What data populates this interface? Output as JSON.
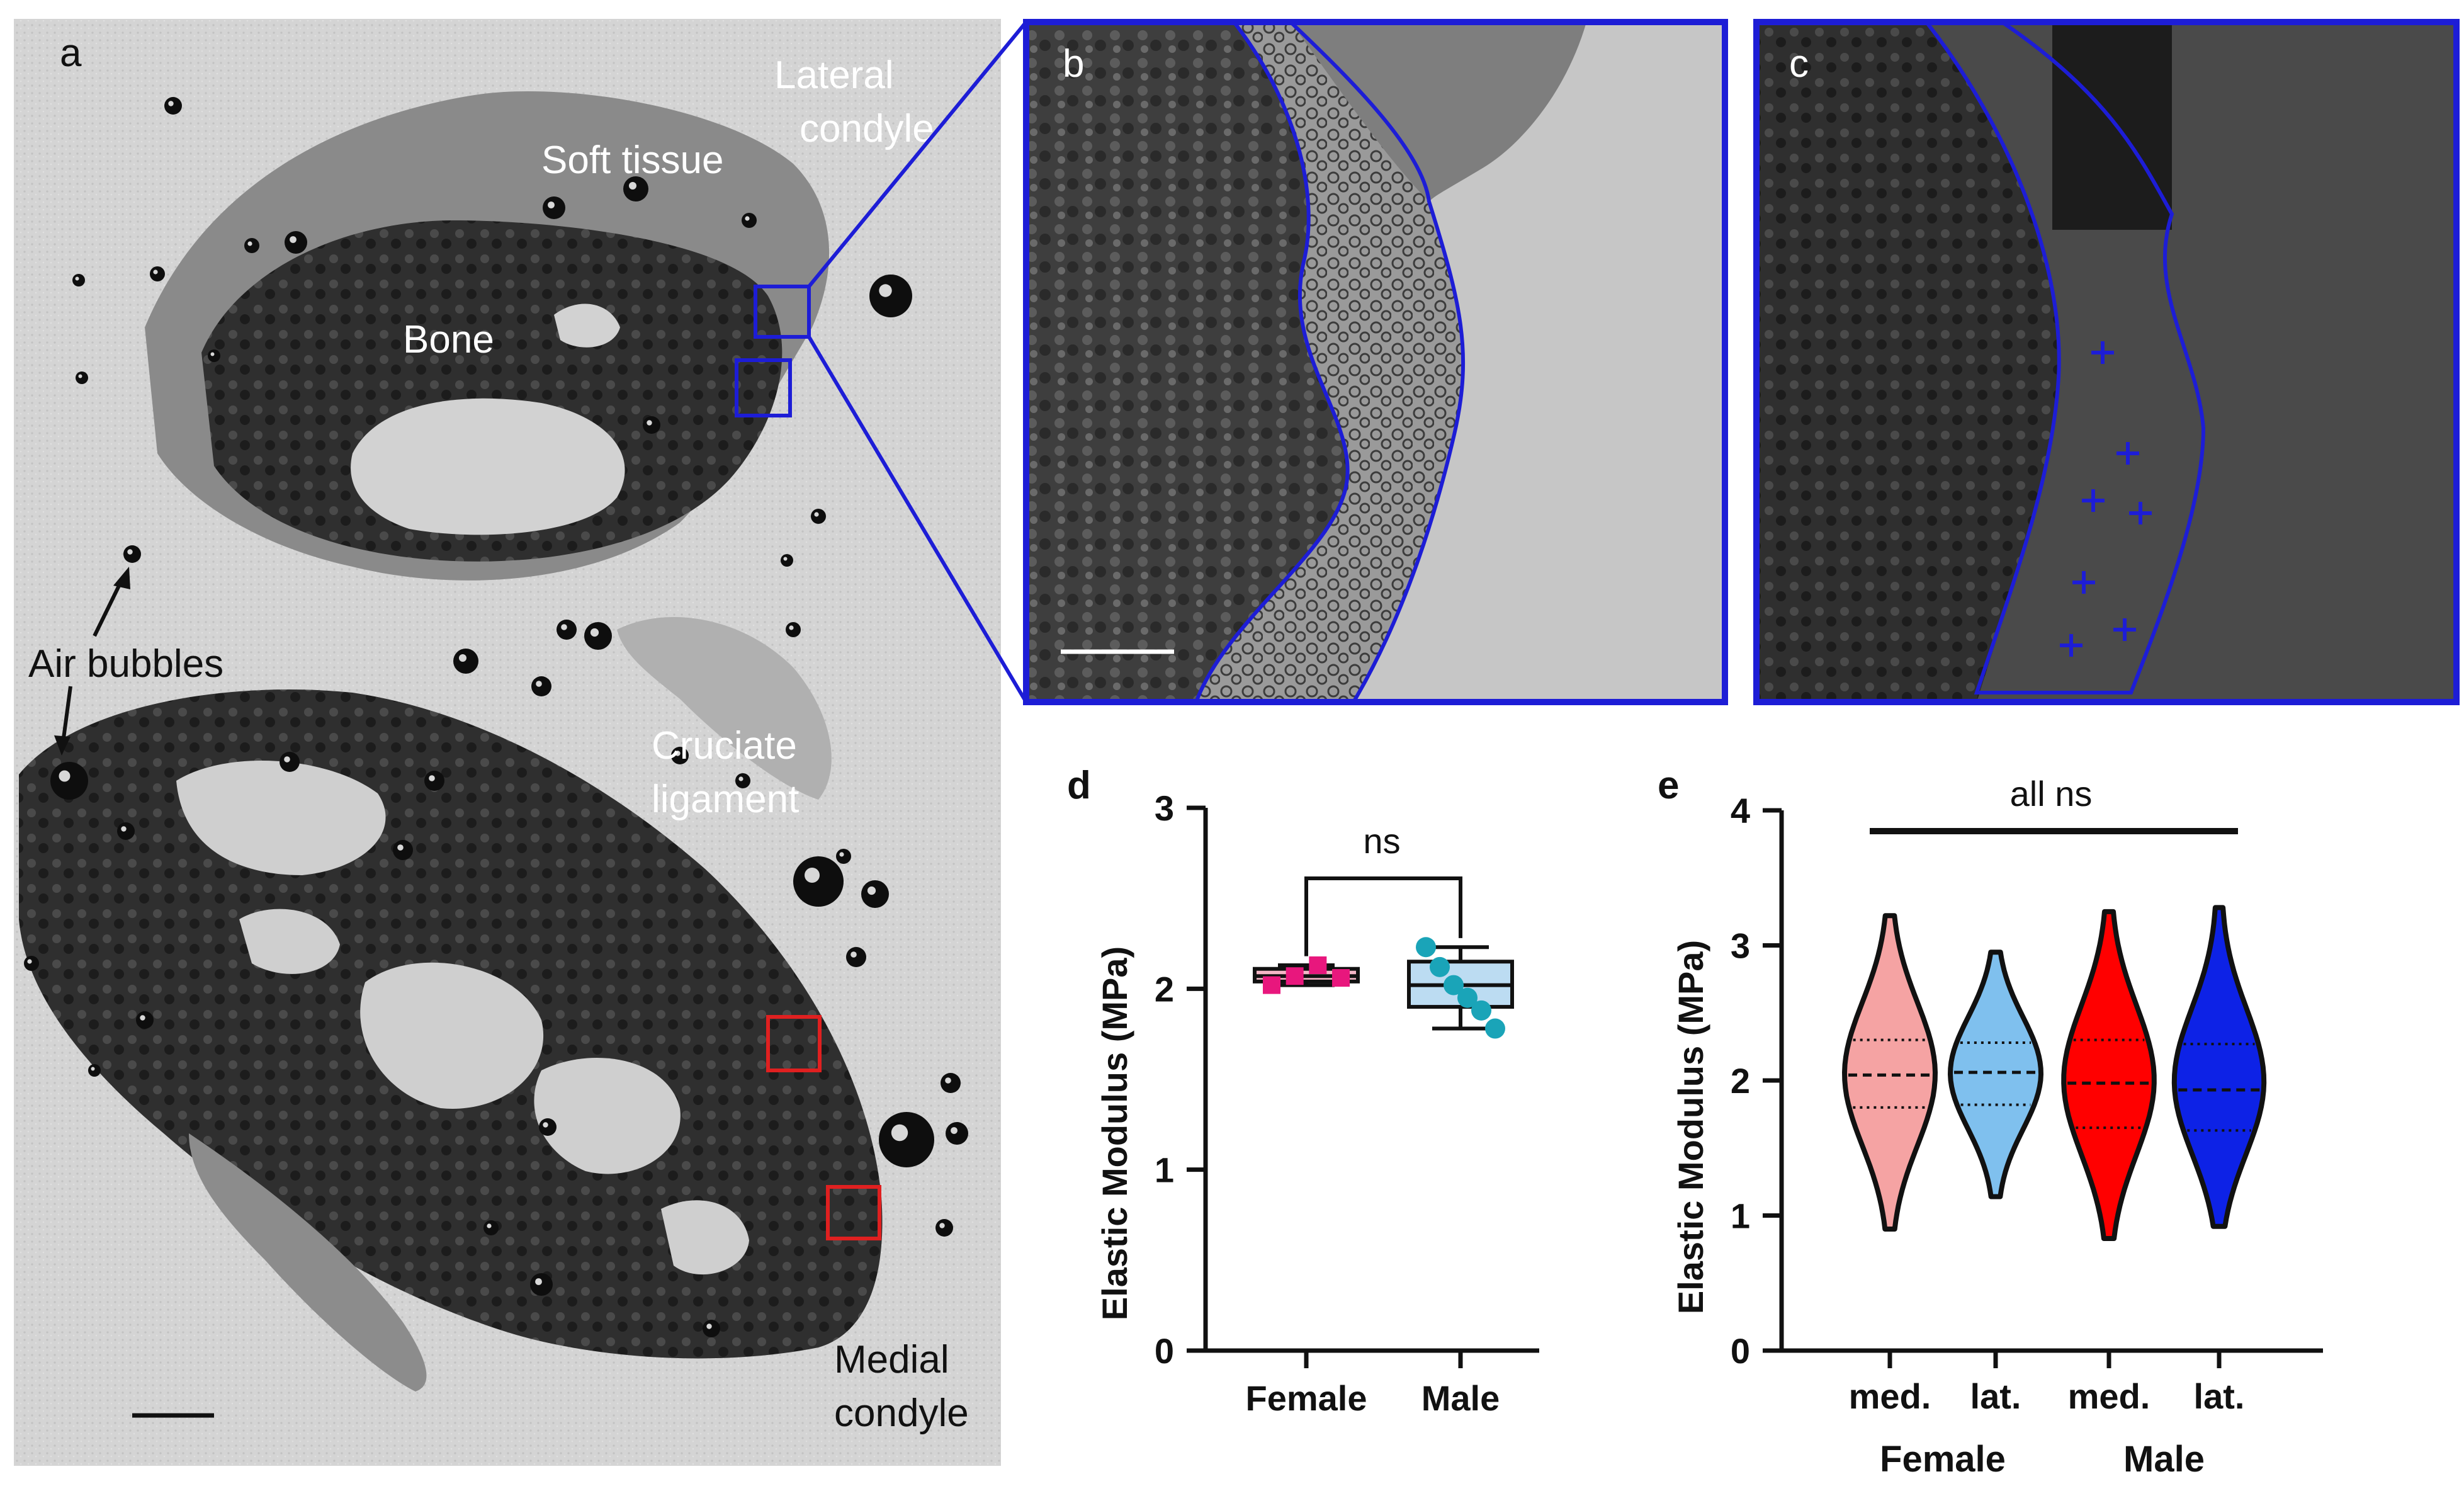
{
  "panels": {
    "a": {
      "letter": "a",
      "labels": {
        "lateral_condyle": [
          "Lateral",
          "condyle"
        ],
        "soft_tissue": "Soft tissue",
        "bone": "Bone",
        "air_bubbles": "Air bubbles",
        "cruciate_ligament": [
          "Cruciate",
          "ligament"
        ],
        "medial_condyle": [
          "Medial",
          "condyle"
        ]
      },
      "roi_colors": {
        "lateral": "#1d1dd6",
        "medial": "#e02020"
      }
    },
    "b": {
      "letter": "b"
    },
    "c": {
      "letter": "c"
    }
  },
  "chart_data": [
    {
      "panel": "d",
      "type": "box",
      "ylabel": "Elastic Modulus (MPa)",
      "ylim": [
        0,
        3
      ],
      "yticks": [
        "0",
        "1",
        "2",
        "3"
      ],
      "categories": [
        "Female",
        "Male"
      ],
      "significance": "ns",
      "series": [
        {
          "name": "Female",
          "color": "#e8177d",
          "fill": "#f4b6c6",
          "points": [
            2.02,
            2.07,
            2.13,
            2.06
          ],
          "box": {
            "min": 2.02,
            "q1": 2.04,
            "median": 2.07,
            "q3": 2.11,
            "max": 2.13
          }
        },
        {
          "name": "Male",
          "color": "#1aa4b8",
          "fill": "#bcdcf2",
          "points": [
            2.23,
            2.12,
            2.02,
            1.95,
            1.88,
            1.78
          ],
          "box": {
            "min": 1.78,
            "q1": 1.9,
            "median": 2.02,
            "q3": 2.15,
            "max": 2.23
          }
        }
      ]
    },
    {
      "panel": "e",
      "type": "violin",
      "ylabel": "Elastic Modulus (MPa)",
      "ylim": [
        0,
        4
      ],
      "yticks": [
        "0",
        "1",
        "2",
        "3",
        "4"
      ],
      "categories": [
        "med.",
        "lat.",
        "med.",
        "lat."
      ],
      "groups": [
        "Female",
        "Male"
      ],
      "significance": "all ns",
      "series": [
        {
          "name": "med.",
          "color": "#f5a3a3",
          "min": 0.9,
          "max": 3.22,
          "median": 2.04,
          "q1": 1.8,
          "q3": 2.3
        },
        {
          "name": "lat.",
          "color": "#7fc0ee",
          "min": 1.14,
          "max": 2.95,
          "median": 2.06,
          "q1": 1.82,
          "q3": 2.28
        },
        {
          "name": "med.",
          "color": "#ff0000",
          "min": 0.83,
          "max": 3.25,
          "median": 1.98,
          "q1": 1.65,
          "q3": 2.3
        },
        {
          "name": "lat.",
          "color": "#0d22e6",
          "min": 0.92,
          "max": 3.28,
          "median": 1.93,
          "q1": 1.63,
          "q3": 2.27
        }
      ]
    }
  ]
}
